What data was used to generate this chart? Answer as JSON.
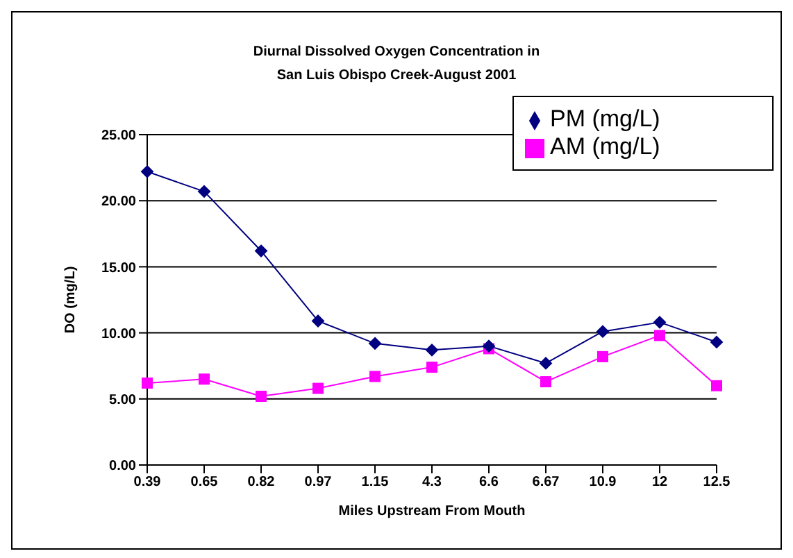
{
  "chart_data": {
    "type": "line",
    "title": "Diurnal Dissolved Oxygen Concentration in\nSan Luis Obispo Creek-August 2001",
    "xlabel": "Miles Upstream From Mouth",
    "ylabel": "DO (mg/L)",
    "categories": [
      "0.39",
      "0.65",
      "0.82",
      "0.97",
      "1.15",
      "4.3",
      "6.6",
      "6.67",
      "10.9",
      "12",
      "12.5"
    ],
    "series": [
      {
        "name": "PM (mg/L)",
        "color": "#000080",
        "marker": "diamond",
        "values": [
          22.2,
          20.7,
          16.2,
          10.9,
          9.2,
          8.7,
          9.0,
          7.7,
          10.1,
          10.8,
          9.3
        ]
      },
      {
        "name": "AM (mg/L)",
        "color": "#ff00ff",
        "marker": "square",
        "values": [
          6.2,
          6.5,
          5.2,
          5.8,
          6.7,
          7.4,
          8.8,
          6.3,
          8.2,
          9.8,
          6.0
        ]
      }
    ],
    "ylim": [
      0,
      25
    ],
    "yticks": [
      {
        "value": 0,
        "label": "0.00"
      },
      {
        "value": 5,
        "label": "5.00"
      },
      {
        "value": 10,
        "label": "10.00"
      },
      {
        "value": 15,
        "label": "15.00"
      },
      {
        "value": 20,
        "label": "20.00"
      },
      {
        "value": 25,
        "label": "25.00"
      }
    ],
    "grid": "y",
    "legend": "top right"
  }
}
